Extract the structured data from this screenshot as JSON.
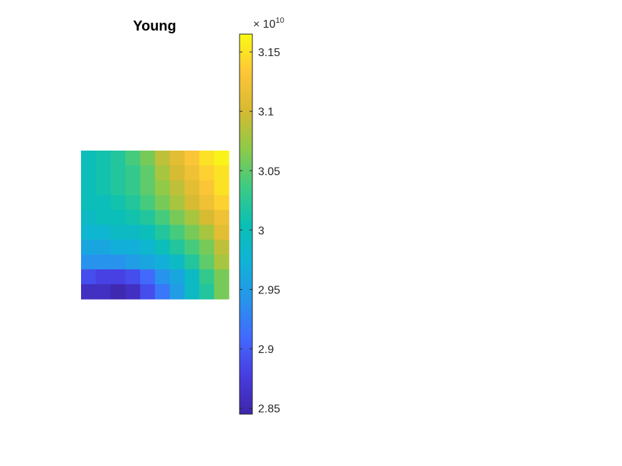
{
  "chart_data": {
    "type": "heatmap",
    "title": "Young",
    "xlabel": "",
    "ylabel": "",
    "grid": false,
    "colormap": "parula",
    "colorbar": {
      "exponent_label": "× 10",
      "exponent": "10",
      "clim": [
        2.845,
        3.165
      ],
      "ticks": [
        2.85,
        2.9,
        2.95,
        3,
        3.05,
        3.1,
        3.15
      ],
      "tick_labels": [
        "2.85",
        "2.9",
        "2.95",
        "3",
        "3.05",
        "3.1",
        "3.15"
      ]
    },
    "rows": 10,
    "cols": 10,
    "values": [
      [
        3.0,
        3.01,
        3.02,
        3.04,
        3.06,
        3.09,
        3.11,
        3.13,
        3.15,
        3.16
      ],
      [
        3.0,
        3.01,
        3.02,
        3.03,
        3.05,
        3.08,
        3.1,
        3.12,
        3.14,
        3.15
      ],
      [
        3.0,
        3.01,
        3.02,
        3.03,
        3.05,
        3.07,
        3.09,
        3.11,
        3.13,
        3.15
      ],
      [
        3.0,
        3.0,
        3.01,
        3.02,
        3.04,
        3.06,
        3.08,
        3.1,
        3.12,
        3.14
      ],
      [
        2.99,
        3.0,
        3.0,
        3.01,
        3.02,
        3.04,
        3.06,
        3.08,
        3.1,
        3.12
      ],
      [
        2.98,
        2.98,
        2.99,
        2.99,
        3.0,
        3.02,
        3.04,
        3.06,
        3.08,
        3.11
      ],
      [
        2.96,
        2.96,
        2.97,
        2.97,
        2.98,
        3.0,
        3.02,
        3.04,
        3.06,
        3.09
      ],
      [
        2.94,
        2.94,
        2.94,
        2.95,
        2.96,
        2.97,
        2.99,
        3.02,
        3.05,
        3.08
      ],
      [
        2.89,
        2.88,
        2.88,
        2.89,
        2.91,
        2.94,
        2.96,
        2.99,
        3.03,
        3.06
      ],
      [
        2.86,
        2.86,
        2.85,
        2.86,
        2.89,
        2.92,
        2.95,
        2.99,
        3.02,
        3.06
      ]
    ]
  }
}
